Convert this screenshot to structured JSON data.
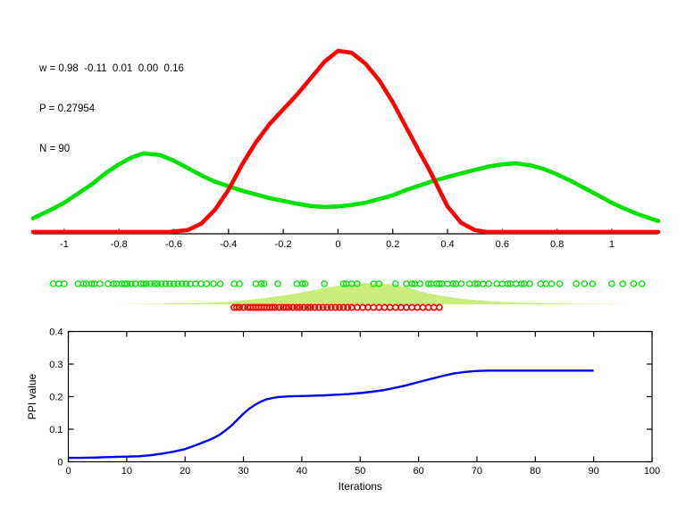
{
  "figure": {
    "background": "#ffffff"
  },
  "annotation": {
    "line1": "w = 0.98  -0.11  0.01  0.00  0.16",
    "line2": "P = 0.27954",
    "line3": "N = 90"
  },
  "colors": {
    "red": "#ff0000",
    "green": "#00e200",
    "density_fill": "#c9ee7d",
    "blue": "#0000f0",
    "axis": "#000000"
  },
  "chart_data": [
    {
      "id": "density",
      "type": "line",
      "title": "",
      "xlabel": "",
      "ylabel": "",
      "xlim": [
        -1.114,
        1.17
      ],
      "ylim": [
        0,
        1.05
      ],
      "grid": false,
      "legend": "none",
      "xticks": [
        -1,
        -0.8,
        -0.6,
        -0.4,
        -0.2,
        0,
        0.2,
        0.4,
        0.6,
        0.8,
        1
      ],
      "xtick_labels": [
        "-1",
        "-0.8",
        "-0.6",
        "-0.4",
        "-0.2",
        "0",
        "0.2",
        "0.4",
        "0.6",
        "0.8",
        "1"
      ],
      "series": [
        {
          "name": "sample-density-green",
          "color": "green",
          "points": [
            [
              -1.114,
              0.085
            ],
            [
              -1.05,
              0.13
            ],
            [
              -1.0,
              0.17
            ],
            [
              -0.95,
              0.22
            ],
            [
              -0.9,
              0.27
            ],
            [
              -0.85,
              0.33
            ],
            [
              -0.8,
              0.38
            ],
            [
              -0.75,
              0.42
            ],
            [
              -0.71,
              0.44
            ],
            [
              -0.65,
              0.43
            ],
            [
              -0.6,
              0.4
            ],
            [
              -0.55,
              0.36
            ],
            [
              -0.5,
              0.32
            ],
            [
              -0.45,
              0.285
            ],
            [
              -0.4,
              0.26
            ],
            [
              -0.35,
              0.235
            ],
            [
              -0.3,
              0.215
            ],
            [
              -0.25,
              0.195
            ],
            [
              -0.2,
              0.18
            ],
            [
              -0.15,
              0.165
            ],
            [
              -0.1,
              0.152
            ],
            [
              -0.05,
              0.147
            ],
            [
              0.0,
              0.15
            ],
            [
              0.05,
              0.158
            ],
            [
              0.1,
              0.17
            ],
            [
              0.15,
              0.19
            ],
            [
              0.2,
              0.21
            ],
            [
              0.25,
              0.24
            ],
            [
              0.3,
              0.265
            ],
            [
              0.35,
              0.29
            ],
            [
              0.4,
              0.31
            ],
            [
              0.45,
              0.33
            ],
            [
              0.5,
              0.35
            ],
            [
              0.55,
              0.368
            ],
            [
              0.6,
              0.38
            ],
            [
              0.65,
              0.385
            ],
            [
              0.7,
              0.375
            ],
            [
              0.75,
              0.355
            ],
            [
              0.8,
              0.325
            ],
            [
              0.85,
              0.29
            ],
            [
              0.9,
              0.25
            ],
            [
              0.95,
              0.21
            ],
            [
              1.0,
              0.17
            ],
            [
              1.05,
              0.135
            ],
            [
              1.1,
              0.105
            ],
            [
              1.17,
              0.07
            ]
          ]
        },
        {
          "name": "weighted-mixture-density-red",
          "color": "red",
          "points": [
            [
              -1.114,
              0.01
            ],
            [
              -0.62,
              0.01
            ],
            [
              -0.55,
              0.02
            ],
            [
              -0.5,
              0.055
            ],
            [
              -0.45,
              0.13
            ],
            [
              -0.4,
              0.24
            ],
            [
              -0.35,
              0.38
            ],
            [
              -0.3,
              0.5
            ],
            [
              -0.25,
              0.6
            ],
            [
              -0.2,
              0.68
            ],
            [
              -0.15,
              0.76
            ],
            [
              -0.1,
              0.85
            ],
            [
              -0.05,
              0.94
            ],
            [
              0.0,
              1.0
            ],
            [
              0.05,
              0.99
            ],
            [
              0.1,
              0.93
            ],
            [
              0.15,
              0.84
            ],
            [
              0.2,
              0.72
            ],
            [
              0.25,
              0.58
            ],
            [
              0.3,
              0.44
            ],
            [
              0.33,
              0.36
            ],
            [
              0.36,
              0.27
            ],
            [
              0.4,
              0.15
            ],
            [
              0.45,
              0.06
            ],
            [
              0.5,
              0.02
            ],
            [
              0.54,
              0.01
            ],
            [
              1.17,
              0.01
            ]
          ]
        }
      ]
    },
    {
      "id": "samples-rug",
      "type": "scatter",
      "xlim": [
        -1.114,
        1.17
      ],
      "grid": false,
      "density_fill": {
        "color": "density_fill",
        "points": [
          [
            -0.8,
            0
          ],
          [
            -0.7,
            0.02
          ],
          [
            -0.6,
            0.035
          ],
          [
            -0.5,
            0.06
          ],
          [
            -0.45,
            0.085
          ],
          [
            -0.4,
            0.12
          ],
          [
            -0.35,
            0.18
          ],
          [
            -0.3,
            0.25
          ],
          [
            -0.25,
            0.33
          ],
          [
            -0.2,
            0.42
          ],
          [
            -0.15,
            0.52
          ],
          [
            -0.1,
            0.65
          ],
          [
            -0.05,
            0.78
          ],
          [
            0.0,
            0.88
          ],
          [
            0.05,
            0.96
          ],
          [
            0.1,
            1.0
          ],
          [
            0.15,
            1.0
          ],
          [
            0.2,
            0.95
          ],
          [
            0.25,
            0.82
          ],
          [
            0.3,
            0.62
          ],
          [
            0.33,
            0.52
          ],
          [
            0.36,
            0.45
          ],
          [
            0.4,
            0.36
          ],
          [
            0.45,
            0.27
          ],
          [
            0.5,
            0.2
          ],
          [
            0.55,
            0.15
          ],
          [
            0.6,
            0.11
          ],
          [
            0.65,
            0.085
          ],
          [
            0.7,
            0.065
          ],
          [
            0.8,
            0.04
          ],
          [
            0.9,
            0.022
          ],
          [
            1.0,
            0.012
          ],
          [
            1.05,
            0.006
          ],
          [
            1.06,
            0
          ]
        ]
      },
      "green_samples": [
        -1.04,
        -1.02,
        -1.0,
        -0.95,
        -0.93,
        -0.92,
        -0.9,
        -0.89,
        -0.87,
        -0.84,
        -0.82,
        -0.81,
        -0.79,
        -0.78,
        -0.77,
        -0.755,
        -0.74,
        -0.72,
        -0.71,
        -0.7,
        -0.685,
        -0.67,
        -0.66,
        -0.645,
        -0.63,
        -0.615,
        -0.6,
        -0.585,
        -0.57,
        -0.555,
        -0.54,
        -0.52,
        -0.5,
        -0.48,
        -0.455,
        -0.43,
        -0.38,
        -0.36,
        -0.3,
        -0.28,
        -0.27,
        -0.22,
        -0.15,
        -0.13,
        -0.12,
        -0.05,
        0.02,
        0.03,
        0.05,
        0.07,
        0.13,
        0.15,
        0.21,
        0.25,
        0.27,
        0.28,
        0.3,
        0.33,
        0.34,
        0.36,
        0.37,
        0.38,
        0.4,
        0.42,
        0.43,
        0.45,
        0.48,
        0.5,
        0.51,
        0.53,
        0.55,
        0.58,
        0.6,
        0.62,
        0.63,
        0.65,
        0.67,
        0.68,
        0.7,
        0.74,
        0.76,
        0.78,
        0.81,
        0.87,
        0.9,
        0.93,
        1.0,
        1.04,
        1.08,
        1.11
      ],
      "red_samples": [
        -0.38,
        -0.37,
        -0.36,
        -0.345,
        -0.33,
        -0.32,
        -0.31,
        -0.3,
        -0.29,
        -0.28,
        -0.27,
        -0.26,
        -0.25,
        -0.24,
        -0.23,
        -0.215,
        -0.2,
        -0.19,
        -0.18,
        -0.165,
        -0.15,
        -0.14,
        -0.125,
        -0.11,
        -0.1,
        -0.085,
        -0.07,
        -0.055,
        -0.04,
        -0.025,
        -0.01,
        0.005,
        0.02,
        0.035,
        0.05,
        0.07,
        0.09,
        0.11,
        0.13,
        0.15,
        0.17,
        0.19,
        0.21,
        0.23,
        0.25,
        0.27,
        0.29,
        0.31,
        0.33,
        0.35,
        0.37
      ]
    },
    {
      "id": "ppi",
      "type": "line",
      "title": "",
      "xlabel": "Iterations",
      "ylabel": "PPI value",
      "xlim": [
        0,
        100
      ],
      "ylim": [
        0,
        0.4
      ],
      "grid": false,
      "legend": "none",
      "box": true,
      "xticks": [
        0,
        10,
        20,
        30,
        40,
        50,
        60,
        70,
        80,
        90,
        100
      ],
      "xtick_labels": [
        "0",
        "10",
        "20",
        "30",
        "40",
        "50",
        "60",
        "70",
        "80",
        "90",
        "100"
      ],
      "yticks": [
        0,
        0.1,
        0.2,
        0.3,
        0.4
      ],
      "ytick_labels": [
        "0",
        "0.1",
        "0.2",
        "0.3",
        "0.4"
      ],
      "series": [
        {
          "name": "ppi-value",
          "color": "blue",
          "points": [
            [
              0,
              0.012
            ],
            [
              2,
              0.012
            ],
            [
              4,
              0.013
            ],
            [
              6,
              0.014
            ],
            [
              8,
              0.015
            ],
            [
              10,
              0.016
            ],
            [
              12,
              0.017
            ],
            [
              14,
              0.02
            ],
            [
              16,
              0.025
            ],
            [
              18,
              0.031
            ],
            [
              20,
              0.039
            ],
            [
              22,
              0.052
            ],
            [
              24,
              0.066
            ],
            [
              25,
              0.074
            ],
            [
              26,
              0.084
            ],
            [
              27,
              0.097
            ],
            [
              28,
              0.112
            ],
            [
              29,
              0.13
            ],
            [
              30,
              0.148
            ],
            [
              31,
              0.163
            ],
            [
              32,
              0.175
            ],
            [
              33,
              0.185
            ],
            [
              34,
              0.192
            ],
            [
              35,
              0.196
            ],
            [
              36,
              0.199
            ],
            [
              38,
              0.201
            ],
            [
              40,
              0.202
            ],
            [
              42,
              0.203
            ],
            [
              44,
              0.204
            ],
            [
              46,
              0.206
            ],
            [
              48,
              0.208
            ],
            [
              50,
              0.211
            ],
            [
              52,
              0.215
            ],
            [
              54,
              0.22
            ],
            [
              56,
              0.227
            ],
            [
              58,
              0.235
            ],
            [
              60,
              0.245
            ],
            [
              62,
              0.254
            ],
            [
              64,
              0.263
            ],
            [
              66,
              0.271
            ],
            [
              68,
              0.276
            ],
            [
              70,
              0.279
            ],
            [
              72,
              0.28
            ],
            [
              74,
              0.28
            ],
            [
              76,
              0.28
            ],
            [
              78,
              0.28
            ],
            [
              80,
              0.28
            ],
            [
              82,
              0.28
            ],
            [
              84,
              0.28
            ],
            [
              86,
              0.28
            ],
            [
              88,
              0.28
            ],
            [
              90,
              0.28
            ]
          ]
        }
      ]
    }
  ]
}
